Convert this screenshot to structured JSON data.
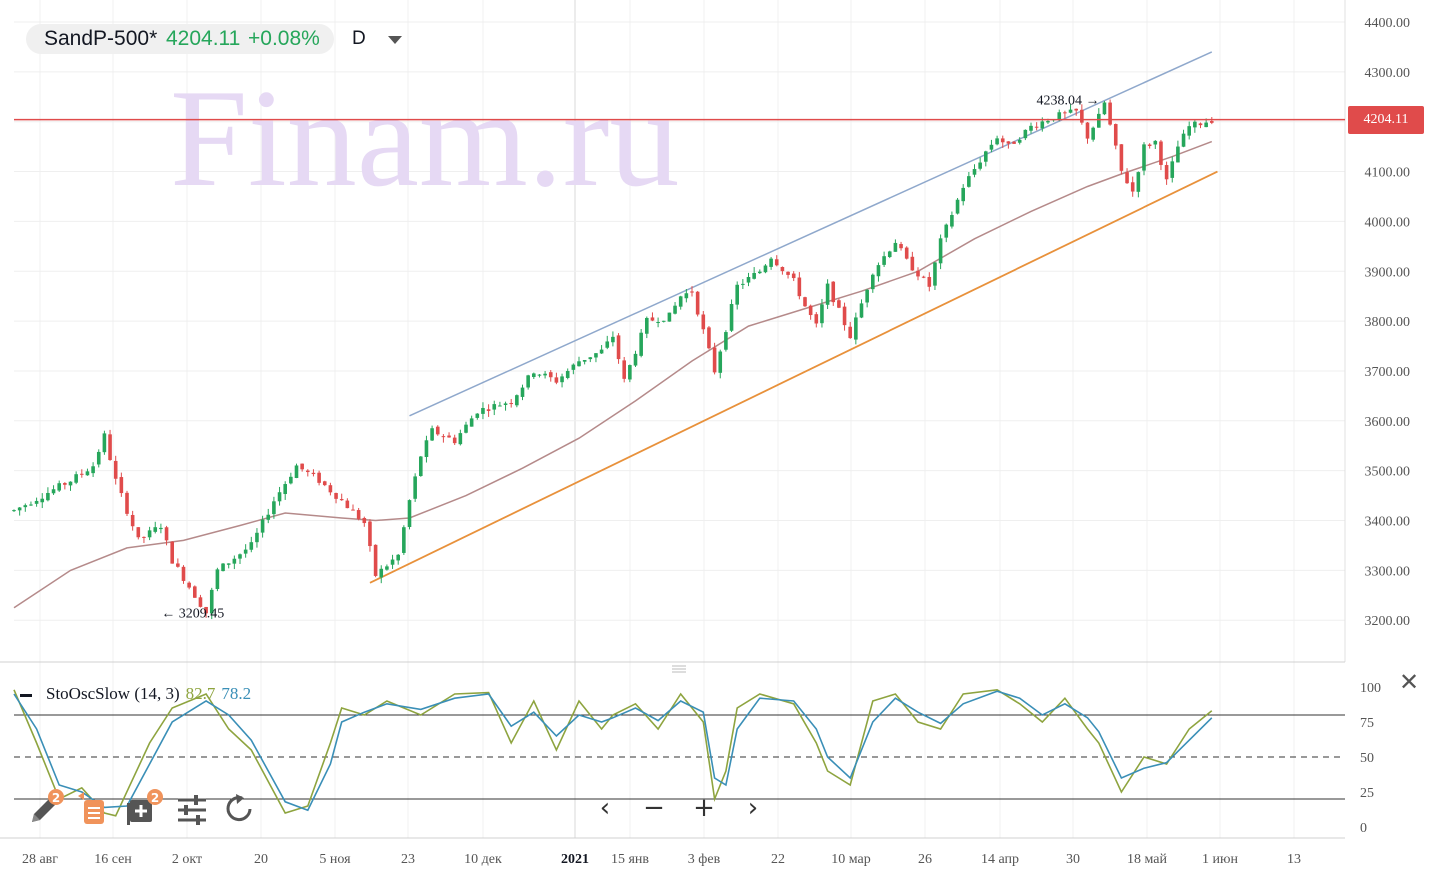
{
  "legend": {
    "symbol": "SandP-500*",
    "price": "4204.11",
    "change": "+0.08%",
    "timeframe": "D"
  },
  "watermark": "Finam.ru",
  "last_price_label": "4204.11",
  "annotations": {
    "high": "4238.04",
    "low": "3209.45"
  },
  "oscillator": {
    "name": "StoOscSlow (14, 3)",
    "k_value": "82.7",
    "d_value": "78.2",
    "levels": [
      "100",
      "75",
      "50",
      "25",
      "0"
    ]
  },
  "colors": {
    "up": "#26a65b",
    "down": "#e04b4b",
    "last_price_line": "#e04b4b",
    "upper_channel": "#8fa8cc",
    "lower_channel": "#e8913b",
    "moving_average": "#b58a8a",
    "stoch_k": "#8ea43f",
    "stoch_d": "#3a8fb7",
    "watermark": "#e6d9f4"
  },
  "nav_icons": [
    "chevron-left-icon",
    "minus-icon",
    "plus-icon",
    "chevron-right-icon"
  ],
  "tool_icons": [
    "pencil-icon",
    "notes-icon",
    "add-indicator-icon",
    "settings-sliders-icon",
    "reset-icon"
  ],
  "tool_badges": {
    "pencil": "2",
    "add_indicator": "2"
  },
  "chart_data": {
    "type": "candlestick",
    "title": "SandP-500*",
    "timeframe": "D",
    "y_axis": {
      "ticks": [
        "4400.00",
        "4300.00",
        "4200.00",
        "4100.00",
        "4000.00",
        "3900.00",
        "3800.00",
        "3700.00",
        "3600.00",
        "3500.00",
        "3400.00",
        "3300.00",
        "3200.00"
      ],
      "range": [
        3140,
        4440
      ]
    },
    "x_axis": {
      "ticks": [
        "28 авг",
        "16 сен",
        "2 окт",
        "20",
        "5 ноя",
        "23",
        "10 дек",
        "2021",
        "15 янв",
        "3 фев",
        "22",
        "10 мар",
        "26",
        "14 апр",
        "30",
        "18 май",
        "1 июн",
        "13"
      ]
    },
    "last_price": 4204.11,
    "annotated_high": 4238.04,
    "annotated_low": 3209.45,
    "close_path": [
      [
        0,
        3420
      ],
      [
        10,
        3480
      ],
      [
        14,
        3510
      ],
      [
        16,
        3570
      ],
      [
        18,
        3480
      ],
      [
        22,
        3360
      ],
      [
        26,
        3390
      ],
      [
        28,
        3320
      ],
      [
        34,
        3215
      ],
      [
        36,
        3300
      ],
      [
        42,
        3350
      ],
      [
        46,
        3440
      ],
      [
        50,
        3510
      ],
      [
        54,
        3480
      ],
      [
        58,
        3440
      ],
      [
        62,
        3395
      ],
      [
        64,
        3290
      ],
      [
        68,
        3330
      ],
      [
        70,
        3440
      ],
      [
        72,
        3530
      ],
      [
        74,
        3580
      ],
      [
        78,
        3560
      ],
      [
        82,
        3620
      ],
      [
        88,
        3640
      ],
      [
        92,
        3700
      ],
      [
        96,
        3680
      ],
      [
        100,
        3720
      ],
      [
        104,
        3740
      ],
      [
        106,
        3770
      ],
      [
        108,
        3680
      ],
      [
        112,
        3800
      ],
      [
        116,
        3810
      ],
      [
        118,
        3850
      ],
      [
        120,
        3860
      ],
      [
        122,
        3780
      ],
      [
        124,
        3700
      ],
      [
        128,
        3870
      ],
      [
        132,
        3900
      ],
      [
        134,
        3930
      ],
      [
        138,
        3880
      ],
      [
        140,
        3830
      ],
      [
        142,
        3790
      ],
      [
        144,
        3870
      ],
      [
        148,
        3770
      ],
      [
        152,
        3900
      ],
      [
        156,
        3960
      ],
      [
        158,
        3920
      ],
      [
        162,
        3870
      ],
      [
        164,
        3960
      ],
      [
        168,
        4070
      ],
      [
        172,
        4140
      ],
      [
        174,
        4170
      ],
      [
        176,
        4150
      ],
      [
        180,
        4190
      ],
      [
        184,
        4210
      ],
      [
        188,
        4220
      ],
      [
        190,
        4170
      ],
      [
        192,
        4210
      ],
      [
        193,
        4238
      ],
      [
        196,
        4100
      ],
      [
        198,
        4060
      ],
      [
        200,
        4150
      ],
      [
        202,
        4160
      ],
      [
        204,
        4080
      ],
      [
        206,
        4150
      ],
      [
        208,
        4190
      ],
      [
        212,
        4204
      ]
    ],
    "channel_upper": {
      "from": [
        70,
        3610
      ],
      "to": [
        212,
        4340
      ]
    },
    "channel_lower": {
      "from": [
        63,
        3275
      ],
      "to": [
        213,
        4100
      ]
    },
    "moving_average": [
      [
        0,
        3225
      ],
      [
        10,
        3300
      ],
      [
        20,
        3345
      ],
      [
        30,
        3360
      ],
      [
        40,
        3390
      ],
      [
        48,
        3415
      ],
      [
        58,
        3405
      ],
      [
        64,
        3400
      ],
      [
        70,
        3405
      ],
      [
        80,
        3450
      ],
      [
        90,
        3505
      ],
      [
        100,
        3565
      ],
      [
        110,
        3640
      ],
      [
        120,
        3720
      ],
      [
        130,
        3790
      ],
      [
        140,
        3825
      ],
      [
        150,
        3860
      ],
      [
        160,
        3900
      ],
      [
        170,
        3965
      ],
      [
        180,
        4020
      ],
      [
        190,
        4070
      ],
      [
        196,
        4095
      ],
      [
        205,
        4130
      ],
      [
        212,
        4160
      ]
    ],
    "stoch_k": [
      [
        0,
        98
      ],
      [
        4,
        60
      ],
      [
        8,
        20
      ],
      [
        12,
        28
      ],
      [
        16,
        10
      ],
      [
        18,
        8
      ],
      [
        24,
        60
      ],
      [
        28,
        85
      ],
      [
        34,
        95
      ],
      [
        38,
        70
      ],
      [
        42,
        55
      ],
      [
        48,
        10
      ],
      [
        52,
        15
      ],
      [
        56,
        60
      ],
      [
        58,
        85
      ],
      [
        62,
        80
      ],
      [
        66,
        90
      ],
      [
        72,
        80
      ],
      [
        78,
        95
      ],
      [
        84,
        96
      ],
      [
        88,
        60
      ],
      [
        92,
        90
      ],
      [
        96,
        55
      ],
      [
        100,
        90
      ],
      [
        104,
        70
      ],
      [
        106,
        80
      ],
      [
        110,
        88
      ],
      [
        114,
        70
      ],
      [
        118,
        95
      ],
      [
        122,
        75
      ],
      [
        124,
        20
      ],
      [
        126,
        40
      ],
      [
        128,
        85
      ],
      [
        132,
        95
      ],
      [
        138,
        88
      ],
      [
        142,
        60
      ],
      [
        144,
        40
      ],
      [
        148,
        30
      ],
      [
        152,
        90
      ],
      [
        156,
        95
      ],
      [
        160,
        75
      ],
      [
        164,
        70
      ],
      [
        168,
        95
      ],
      [
        174,
        98
      ],
      [
        178,
        88
      ],
      [
        182,
        75
      ],
      [
        186,
        92
      ],
      [
        190,
        70
      ],
      [
        192,
        60
      ],
      [
        196,
        25
      ],
      [
        200,
        50
      ],
      [
        204,
        45
      ],
      [
        208,
        70
      ],
      [
        212,
        83
      ]
    ],
    "stoch_d": [
      [
        0,
        95
      ],
      [
        4,
        70
      ],
      [
        8,
        30
      ],
      [
        12,
        25
      ],
      [
        16,
        14
      ],
      [
        20,
        15
      ],
      [
        24,
        45
      ],
      [
        28,
        75
      ],
      [
        34,
        90
      ],
      [
        38,
        80
      ],
      [
        42,
        62
      ],
      [
        48,
        18
      ],
      [
        52,
        12
      ],
      [
        56,
        45
      ],
      [
        58,
        75
      ],
      [
        62,
        82
      ],
      [
        66,
        88
      ],
      [
        72,
        84
      ],
      [
        78,
        92
      ],
      [
        84,
        95
      ],
      [
        88,
        72
      ],
      [
        92,
        82
      ],
      [
        96,
        65
      ],
      [
        100,
        80
      ],
      [
        104,
        75
      ],
      [
        106,
        78
      ],
      [
        110,
        85
      ],
      [
        114,
        76
      ],
      [
        118,
        90
      ],
      [
        122,
        82
      ],
      [
        124,
        35
      ],
      [
        126,
        30
      ],
      [
        128,
        70
      ],
      [
        132,
        92
      ],
      [
        138,
        90
      ],
      [
        142,
        70
      ],
      [
        144,
        50
      ],
      [
        148,
        35
      ],
      [
        152,
        75
      ],
      [
        156,
        92
      ],
      [
        160,
        82
      ],
      [
        164,
        74
      ],
      [
        168,
        88
      ],
      [
        174,
        97
      ],
      [
        178,
        92
      ],
      [
        182,
        80
      ],
      [
        186,
        88
      ],
      [
        190,
        78
      ],
      [
        192,
        68
      ],
      [
        196,
        35
      ],
      [
        200,
        42
      ],
      [
        204,
        46
      ],
      [
        208,
        62
      ],
      [
        212,
        78
      ]
    ],
    "stoch_levels": [
      80,
      50,
      20
    ]
  }
}
